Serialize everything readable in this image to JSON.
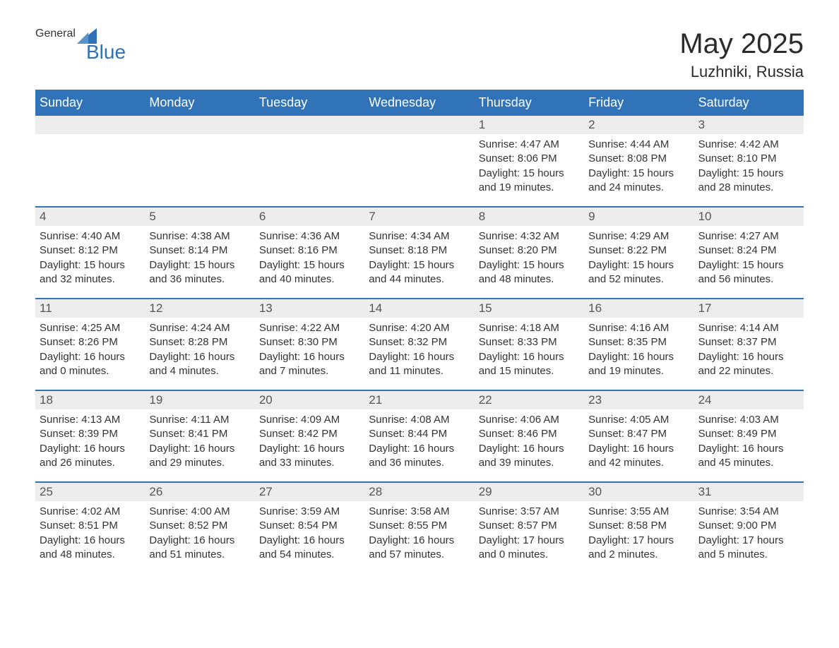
{
  "brand": {
    "general": "General",
    "blue": "Blue",
    "icon_color": "#2f72b8",
    "general_color": "#4a4a4a"
  },
  "header": {
    "month_title": "May 2025",
    "location": "Luzhniki, Russia"
  },
  "style": {
    "header_bg": "#3073b9",
    "header_fg": "#ffffff",
    "daynum_bg": "#ededed",
    "daynum_fg": "#555555",
    "row_border": "#3073b9",
    "body_fg": "#333333",
    "page_bg": "#ffffff",
    "weekday_fontsize": 18,
    "title_fontsize": 40,
    "location_fontsize": 22,
    "day_fontsize": 15
  },
  "weekdays": [
    "Sunday",
    "Monday",
    "Tuesday",
    "Wednesday",
    "Thursday",
    "Friday",
    "Saturday"
  ],
  "weeks": [
    [
      {
        "n": "",
        "sunrise": "",
        "sunset": "",
        "daylight": ""
      },
      {
        "n": "",
        "sunrise": "",
        "sunset": "",
        "daylight": ""
      },
      {
        "n": "",
        "sunrise": "",
        "sunset": "",
        "daylight": ""
      },
      {
        "n": "",
        "sunrise": "",
        "sunset": "",
        "daylight": ""
      },
      {
        "n": "1",
        "sunrise": "Sunrise: 4:47 AM",
        "sunset": "Sunset: 8:06 PM",
        "daylight": "Daylight: 15 hours and 19 minutes."
      },
      {
        "n": "2",
        "sunrise": "Sunrise: 4:44 AM",
        "sunset": "Sunset: 8:08 PM",
        "daylight": "Daylight: 15 hours and 24 minutes."
      },
      {
        "n": "3",
        "sunrise": "Sunrise: 4:42 AM",
        "sunset": "Sunset: 8:10 PM",
        "daylight": "Daylight: 15 hours and 28 minutes."
      }
    ],
    [
      {
        "n": "4",
        "sunrise": "Sunrise: 4:40 AM",
        "sunset": "Sunset: 8:12 PM",
        "daylight": "Daylight: 15 hours and 32 minutes."
      },
      {
        "n": "5",
        "sunrise": "Sunrise: 4:38 AM",
        "sunset": "Sunset: 8:14 PM",
        "daylight": "Daylight: 15 hours and 36 minutes."
      },
      {
        "n": "6",
        "sunrise": "Sunrise: 4:36 AM",
        "sunset": "Sunset: 8:16 PM",
        "daylight": "Daylight: 15 hours and 40 minutes."
      },
      {
        "n": "7",
        "sunrise": "Sunrise: 4:34 AM",
        "sunset": "Sunset: 8:18 PM",
        "daylight": "Daylight: 15 hours and 44 minutes."
      },
      {
        "n": "8",
        "sunrise": "Sunrise: 4:32 AM",
        "sunset": "Sunset: 8:20 PM",
        "daylight": "Daylight: 15 hours and 48 minutes."
      },
      {
        "n": "9",
        "sunrise": "Sunrise: 4:29 AM",
        "sunset": "Sunset: 8:22 PM",
        "daylight": "Daylight: 15 hours and 52 minutes."
      },
      {
        "n": "10",
        "sunrise": "Sunrise: 4:27 AM",
        "sunset": "Sunset: 8:24 PM",
        "daylight": "Daylight: 15 hours and 56 minutes."
      }
    ],
    [
      {
        "n": "11",
        "sunrise": "Sunrise: 4:25 AM",
        "sunset": "Sunset: 8:26 PM",
        "daylight": "Daylight: 16 hours and 0 minutes."
      },
      {
        "n": "12",
        "sunrise": "Sunrise: 4:24 AM",
        "sunset": "Sunset: 8:28 PM",
        "daylight": "Daylight: 16 hours and 4 minutes."
      },
      {
        "n": "13",
        "sunrise": "Sunrise: 4:22 AM",
        "sunset": "Sunset: 8:30 PM",
        "daylight": "Daylight: 16 hours and 7 minutes."
      },
      {
        "n": "14",
        "sunrise": "Sunrise: 4:20 AM",
        "sunset": "Sunset: 8:32 PM",
        "daylight": "Daylight: 16 hours and 11 minutes."
      },
      {
        "n": "15",
        "sunrise": "Sunrise: 4:18 AM",
        "sunset": "Sunset: 8:33 PM",
        "daylight": "Daylight: 16 hours and 15 minutes."
      },
      {
        "n": "16",
        "sunrise": "Sunrise: 4:16 AM",
        "sunset": "Sunset: 8:35 PM",
        "daylight": "Daylight: 16 hours and 19 minutes."
      },
      {
        "n": "17",
        "sunrise": "Sunrise: 4:14 AM",
        "sunset": "Sunset: 8:37 PM",
        "daylight": "Daylight: 16 hours and 22 minutes."
      }
    ],
    [
      {
        "n": "18",
        "sunrise": "Sunrise: 4:13 AM",
        "sunset": "Sunset: 8:39 PM",
        "daylight": "Daylight: 16 hours and 26 minutes."
      },
      {
        "n": "19",
        "sunrise": "Sunrise: 4:11 AM",
        "sunset": "Sunset: 8:41 PM",
        "daylight": "Daylight: 16 hours and 29 minutes."
      },
      {
        "n": "20",
        "sunrise": "Sunrise: 4:09 AM",
        "sunset": "Sunset: 8:42 PM",
        "daylight": "Daylight: 16 hours and 33 minutes."
      },
      {
        "n": "21",
        "sunrise": "Sunrise: 4:08 AM",
        "sunset": "Sunset: 8:44 PM",
        "daylight": "Daylight: 16 hours and 36 minutes."
      },
      {
        "n": "22",
        "sunrise": "Sunrise: 4:06 AM",
        "sunset": "Sunset: 8:46 PM",
        "daylight": "Daylight: 16 hours and 39 minutes."
      },
      {
        "n": "23",
        "sunrise": "Sunrise: 4:05 AM",
        "sunset": "Sunset: 8:47 PM",
        "daylight": "Daylight: 16 hours and 42 minutes."
      },
      {
        "n": "24",
        "sunrise": "Sunrise: 4:03 AM",
        "sunset": "Sunset: 8:49 PM",
        "daylight": "Daylight: 16 hours and 45 minutes."
      }
    ],
    [
      {
        "n": "25",
        "sunrise": "Sunrise: 4:02 AM",
        "sunset": "Sunset: 8:51 PM",
        "daylight": "Daylight: 16 hours and 48 minutes."
      },
      {
        "n": "26",
        "sunrise": "Sunrise: 4:00 AM",
        "sunset": "Sunset: 8:52 PM",
        "daylight": "Daylight: 16 hours and 51 minutes."
      },
      {
        "n": "27",
        "sunrise": "Sunrise: 3:59 AM",
        "sunset": "Sunset: 8:54 PM",
        "daylight": "Daylight: 16 hours and 54 minutes."
      },
      {
        "n": "28",
        "sunrise": "Sunrise: 3:58 AM",
        "sunset": "Sunset: 8:55 PM",
        "daylight": "Daylight: 16 hours and 57 minutes."
      },
      {
        "n": "29",
        "sunrise": "Sunrise: 3:57 AM",
        "sunset": "Sunset: 8:57 PM",
        "daylight": "Daylight: 17 hours and 0 minutes."
      },
      {
        "n": "30",
        "sunrise": "Sunrise: 3:55 AM",
        "sunset": "Sunset: 8:58 PM",
        "daylight": "Daylight: 17 hours and 2 minutes."
      },
      {
        "n": "31",
        "sunrise": "Sunrise: 3:54 AM",
        "sunset": "Sunset: 9:00 PM",
        "daylight": "Daylight: 17 hours and 5 minutes."
      }
    ]
  ]
}
